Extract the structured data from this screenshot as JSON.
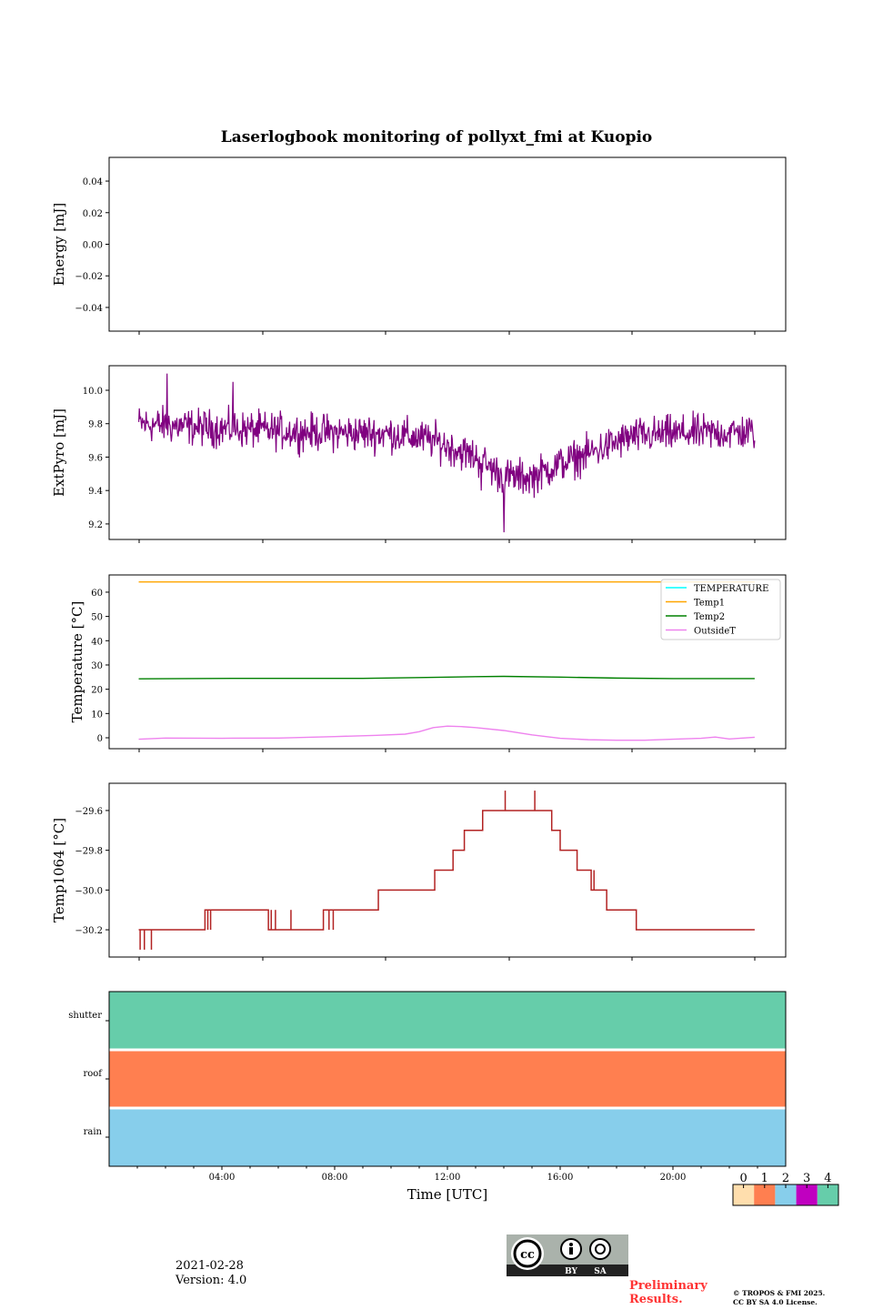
{
  "title": "Laserlogbook monitoring of pollyxt_fmi at Kuopio",
  "footer": {
    "date": "2021-02-28",
    "version": "Version: 4.0",
    "preliminary": [
      "Preliminary",
      "Results."
    ],
    "copyright": [
      "© TROPOS & FMI 2025.",
      "CC BY SA 4.0 License."
    ],
    "license_badge": [
      "BY",
      "SA"
    ]
  },
  "chart_data": [
    {
      "type": "line",
      "panel": "energy",
      "ylabel": "Energy [mJ]",
      "ylim": [
        -0.055,
        0.055
      ],
      "yticks": [
        0.04,
        0.02,
        0.0,
        -0.02,
        -0.04
      ],
      "ytick_labels": [
        "0.04",
        "0.02",
        "0.00",
        "−0.02",
        "−0.04"
      ],
      "series": []
    },
    {
      "type": "line",
      "panel": "extpyro",
      "ylabel": "ExtPyro [mJ]",
      "ylim": [
        9.107,
        10.147
      ],
      "yticks": [
        10.0,
        9.8,
        9.6,
        9.4,
        9.2
      ],
      "ytick_labels": [
        "10.0",
        "9.8",
        "9.6",
        "9.4",
        "9.2"
      ],
      "color": "#800080",
      "baseline_hours": [
        1.05,
        4,
        7,
        10,
        11.5,
        13,
        14,
        15,
        16,
        17,
        18.5,
        20,
        22.9
      ],
      "baseline_values": [
        9.8,
        9.77,
        9.75,
        9.74,
        9.7,
        9.6,
        9.48,
        9.48,
        9.56,
        9.62,
        9.72,
        9.74,
        9.75
      ],
      "spread": 0.12,
      "extremes": [
        [
          2.05,
          10.1
        ],
        [
          14.0,
          9.15
        ],
        [
          4.4,
          10.05
        ],
        [
          13.2,
          9.4
        ]
      ]
    },
    {
      "type": "line",
      "panel": "temperature",
      "ylabel": "Temperature [°C]",
      "ylim": [
        -4.5,
        67.1
      ],
      "yticks": [
        60,
        50,
        40,
        30,
        20,
        10,
        0
      ],
      "ytick_labels": [
        "60",
        "50",
        "40",
        "30",
        "20",
        "10",
        "0"
      ],
      "legend": "top-right",
      "series": [
        {
          "name": "TEMPERATURE",
          "color": "#00ffff",
          "hours": [],
          "values": []
        },
        {
          "name": "Temp1",
          "color": "#ffa500",
          "hours": [
            1.05,
            22.9
          ],
          "values": [
            64.2,
            64.2
          ]
        },
        {
          "name": "Temp2",
          "color": "#008000",
          "hours": [
            1.05,
            5,
            9,
            11,
            13,
            14,
            16,
            18,
            20,
            22.9
          ],
          "values": [
            24.3,
            24.5,
            24.5,
            24.8,
            25.2,
            25.3,
            25.0,
            24.6,
            24.4,
            24.4
          ]
        },
        {
          "name": "OutsideT",
          "color": "#ee82ee",
          "hours": [
            1.05,
            2,
            4,
            6,
            8,
            9.5,
            10.5,
            11,
            11.5,
            12,
            12.5,
            13,
            14,
            15,
            16,
            17,
            18,
            19,
            20,
            21,
            21.5,
            22,
            22.9
          ],
          "values": [
            -0.6,
            -0.1,
            -0.2,
            -0.1,
            0.5,
            1.0,
            1.5,
            2.5,
            4.2,
            4.8,
            4.6,
            4.2,
            3.0,
            1.2,
            -0.2,
            -0.8,
            -1.0,
            -1.0,
            -0.6,
            -0.2,
            0.3,
            -0.5,
            0.2
          ]
        }
      ]
    },
    {
      "type": "line",
      "panel": "temp1064",
      "ylabel": "Temp1064 [°C]",
      "ylim": [
        -30.337,
        -29.463
      ],
      "yticks": [
        -29.6,
        -29.8,
        -30.0,
        -30.2
      ],
      "ytick_labels": [
        "−29.6",
        "−29.8",
        "−30.0",
        "−30.2"
      ],
      "color": "#b22222",
      "steps": [
        [
          1.05,
          -30.2
        ],
        [
          3.4,
          -30.1
        ],
        [
          5.65,
          -30.2
        ],
        [
          7.6,
          -30.1
        ],
        [
          9.55,
          -30.0
        ],
        [
          11.55,
          -29.9
        ],
        [
          12.2,
          -29.8
        ],
        [
          12.6,
          -29.7
        ],
        [
          13.25,
          -29.6
        ],
        [
          15.7,
          -29.7
        ],
        [
          16.0,
          -29.8
        ],
        [
          16.6,
          -29.9
        ],
        [
          17.1,
          -30.0
        ],
        [
          17.65,
          -30.1
        ],
        [
          18.7,
          -30.2
        ],
        [
          22.9,
          -30.2
        ]
      ],
      "spikes": [
        [
          1.1,
          -30.3
        ],
        [
          1.25,
          -30.3
        ],
        [
          1.5,
          -30.3
        ],
        [
          3.5,
          -30.2
        ],
        [
          3.6,
          -30.2
        ],
        [
          5.75,
          -30.1
        ],
        [
          5.9,
          -30.1
        ],
        [
          6.45,
          -30.1
        ],
        [
          7.8,
          -30.2
        ],
        [
          7.95,
          -30.2
        ],
        [
          14.05,
          -29.5
        ],
        [
          15.1,
          -29.5
        ],
        [
          12.4,
          -29.8
        ],
        [
          17.2,
          -29.9
        ]
      ]
    },
    {
      "type": "heatmap",
      "panel": "status",
      "rows": [
        "shutter",
        "roof",
        "rain"
      ],
      "row_values": [
        4,
        1,
        2
      ],
      "xlabel": "Time [UTC]",
      "xlim": [
        0,
        24
      ],
      "xticks": [
        4,
        8,
        12,
        16,
        20
      ],
      "xtick_labels": [
        "04:00",
        "08:00",
        "12:00",
        "16:00",
        "20:00"
      ],
      "colorbar": {
        "labels": [
          "0",
          "1",
          "2",
          "3",
          "4"
        ],
        "colors": [
          "#ffdead",
          "#ff7f50",
          "#87ceeb",
          "#c000c0",
          "#66cdaa"
        ]
      }
    }
  ]
}
